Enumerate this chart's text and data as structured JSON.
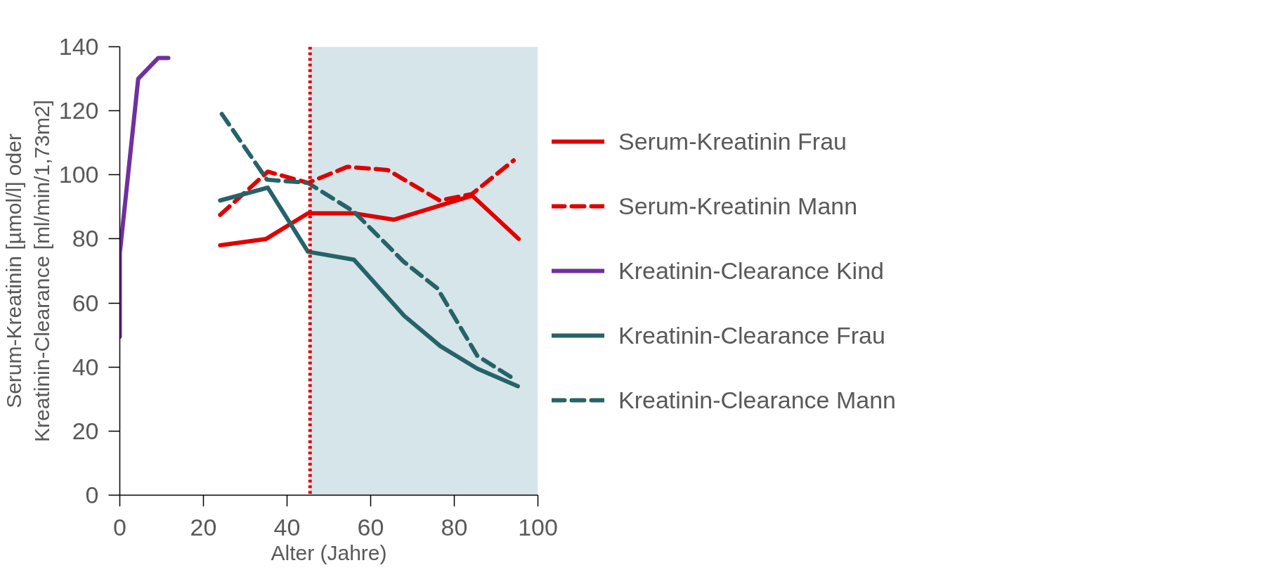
{
  "chart_data": {
    "type": "line",
    "xlabel": "Alter (Jahre)",
    "ylabel": "Serum-Kreatinin [µmol/l] oder\nKreatinin-Clearance [ml/min/1,73m2]",
    "xlim": [
      0,
      100
    ],
    "xticks": [
      0,
      20,
      40,
      60,
      80,
      100
    ],
    "ylim": [
      0,
      140
    ],
    "yticks": [
      0,
      20,
      40,
      60,
      80,
      100,
      120,
      140
    ],
    "grid": false,
    "legend": "right",
    "marker": "none",
    "series": [
      {
        "name": "Serum-Kreatinin Frau",
        "color": "#e00000",
        "line_style": "solid",
        "x": [
          24,
          35,
          45,
          56,
          65.5,
          84.3,
          95.4
        ],
        "values": [
          78,
          80,
          88,
          88,
          86,
          93.5,
          80
        ]
      },
      {
        "name": "Serum-Kreatinin Mann",
        "color": "#e00000",
        "line_style": "dashed",
        "x": [
          24,
          35.4,
          45,
          54.4,
          64.1,
          76.5,
          84.2,
          94.2
        ],
        "values": [
          87.5,
          101,
          97.5,
          102.5,
          101.5,
          92,
          94,
          104.5
        ]
      },
      {
        "name": "Kreatinin-Clearance Kind",
        "color": "#7030a0",
        "line_style": "solid",
        "x": [
          0,
          0,
          4.4,
          9.2,
          11.6
        ],
        "values": [
          49.5,
          75.5,
          130,
          136.5,
          136.5
        ]
      },
      {
        "name": "Kreatinin-Clearance Frau",
        "color": "#266369",
        "line_style": "solid",
        "x": [
          24,
          35.4,
          45,
          56,
          68,
          76.7,
          85.5,
          95.2
        ],
        "values": [
          92,
          96,
          76,
          73.5,
          56,
          46.5,
          39.5,
          34
        ]
      },
      {
        "name": "Kreatinin-Clearance Mann",
        "color": "#266369",
        "line_style": "dashed",
        "x": [
          24.4,
          35.2,
          45,
          56,
          67.8,
          76,
          85.5,
          94
        ],
        "values": [
          119,
          98.5,
          97.5,
          88.5,
          73,
          64.5,
          43.5,
          36.5
        ]
      }
    ],
    "ref_lines": [
      {
        "axis": "x",
        "value": 45.5,
        "label": null,
        "color": "#e00000",
        "line_style": "dotted"
      }
    ],
    "bands": [
      {
        "axis": "x",
        "from": 45.5,
        "to": 100,
        "label": null,
        "color": "#d6e5e9"
      }
    ]
  }
}
